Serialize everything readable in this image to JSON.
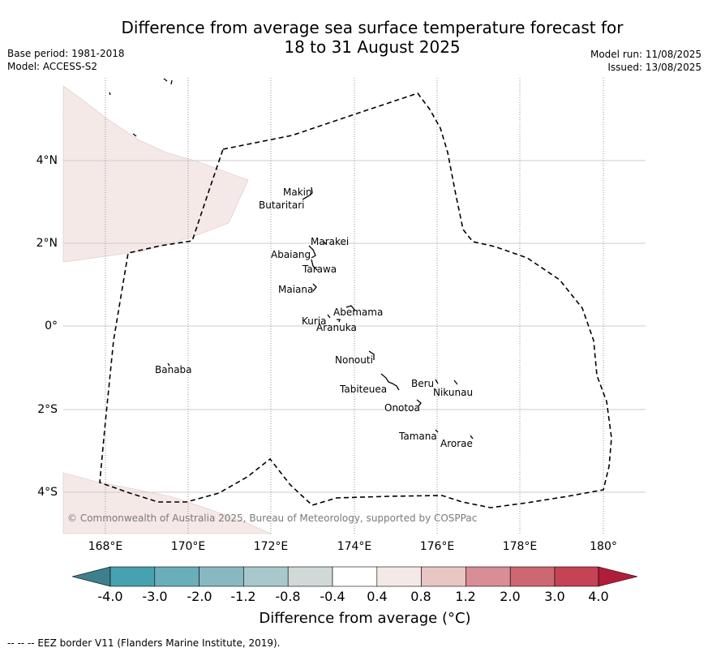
{
  "header": {
    "title_line1": "Difference from average sea surface temperature forecast for",
    "title_line2": "18 to 31 August 2025",
    "base_period": "Base period: 1981-2018",
    "model": "Model: ACCESS-S2",
    "model_run": "Model run: 11/08/2025",
    "issued": "Issued: 13/08/2025"
  },
  "map": {
    "lat_labels": [
      "4°N",
      "2°N",
      "0°",
      "2°S",
      "4°S"
    ],
    "lon_labels": [
      "168°E",
      "170°E",
      "172°E",
      "174°E",
      "176°E",
      "178°E",
      "180°"
    ],
    "places": {
      "makin": "Makin",
      "butaritari": "Butaritari",
      "marakei": "Marakei",
      "abaiang": "Abaiang",
      "tarawa": "Tarawa",
      "maiana": "Maiana",
      "abemama": "Abemama",
      "kuria": "Kuria",
      "aranuka": "Aranuka",
      "nonouti": "Nonouti",
      "banaba": "Banaba",
      "beru": "Beru",
      "nikunau": "Nikunau",
      "tabiteuea": "Tabiteuea",
      "onotoa": "Onotoa",
      "tamana": "Tamana",
      "arorae": "Arorae"
    },
    "copyright": "© Commonwealth of Australia 2025, Bureau of Meteorology, supported by COSPPac",
    "anomaly_fill_color": "#f5e9e8",
    "eez_color": "#000000"
  },
  "colorbar": {
    "labels": [
      "-4.0",
      "-3.0",
      "-2.0",
      "-1.2",
      "-0.8",
      "-0.4",
      "0.4",
      "0.8",
      "1.2",
      "2.0",
      "3.0",
      "4.0"
    ],
    "colors": [
      "#3d7f8c",
      "#46a1b0",
      "#6aaeba",
      "#88b9c3",
      "#a9c8cc",
      "#d1d8d8",
      "#ffffff",
      "#f5e9e8",
      "#e8c6c3",
      "#d98d96",
      "#cd6772",
      "#c44354",
      "#b01d3a"
    ],
    "title": "Difference from average (",
    "title_unit": "°C",
    "title_close": ")"
  },
  "footer": {
    "legend": "--  --  -- EEZ border V11 (Flanders Marine Institute, 2019)."
  }
}
